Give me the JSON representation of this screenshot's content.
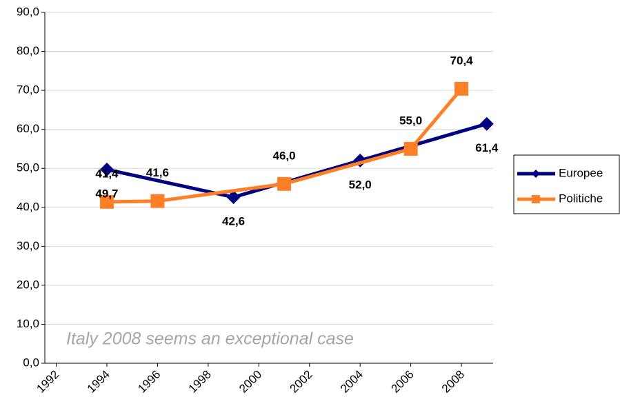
{
  "chart_data": {
    "type": "line",
    "annotation": "Italy 2008 seems an exceptional case",
    "xlim": [
      1991.55,
      2009.25
    ],
    "xticks": [
      1992,
      1994,
      1996,
      1998,
      2000,
      2002,
      2004,
      2006,
      2008
    ],
    "ylim": [
      0,
      90
    ],
    "yticks": [
      {
        "value": 0,
        "label": "0,0"
      },
      {
        "value": 10,
        "label": "10,0"
      },
      {
        "value": 20,
        "label": "20,0"
      },
      {
        "value": 30,
        "label": "30,0"
      },
      {
        "value": 40,
        "label": "40,0"
      },
      {
        "value": 50,
        "label": "50,0"
      },
      {
        "value": 60,
        "label": "60,0"
      },
      {
        "value": 70,
        "label": "70,0"
      },
      {
        "value": 80,
        "label": "80,0"
      },
      {
        "value": 90,
        "label": "90,0"
      }
    ],
    "grid": true,
    "legend": "right",
    "series": [
      {
        "name": "Europee",
        "color": "#000080",
        "marker": "diamond",
        "x": [
          1994,
          1999,
          2004,
          2009
        ],
        "values": [
          49.7,
          42.6,
          52.0,
          61.4
        ],
        "value_labels": [
          "49,7",
          "42,6",
          "52,0",
          "61,4"
        ]
      },
      {
        "name": "Politiche",
        "color": "#ff7f27",
        "marker": "square",
        "x": [
          1994,
          1996,
          2001,
          2006,
          2008
        ],
        "values": [
          41.4,
          41.6,
          46.0,
          55.0,
          70.4
        ],
        "value_labels": [
          "41,4",
          "41,6",
          "46,0",
          "55,0",
          "70,4"
        ]
      }
    ]
  }
}
